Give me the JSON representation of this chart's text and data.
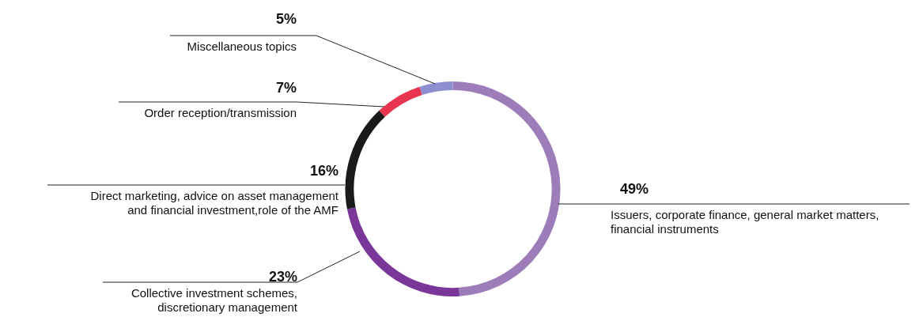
{
  "chart_data": {
    "type": "donut",
    "categories": [
      "Issuers, corporate finance, general market matters, financial instruments",
      "Collective investment schemes, discretionary management",
      "Direct marketing, advice on asset management and financial investment,role of the AMF",
      "Order reception/transmission",
      "Miscellaneous topics"
    ],
    "values": [
      49,
      23,
      16,
      7,
      5
    ],
    "value_labels": [
      "49%",
      "23%",
      "16%",
      "7%",
      "5%"
    ],
    "colors": [
      "#9c7cb9",
      "#7a3699",
      "#1a1a1a",
      "#e8344e",
      "#8d8fd0"
    ],
    "legend": false
  }
}
